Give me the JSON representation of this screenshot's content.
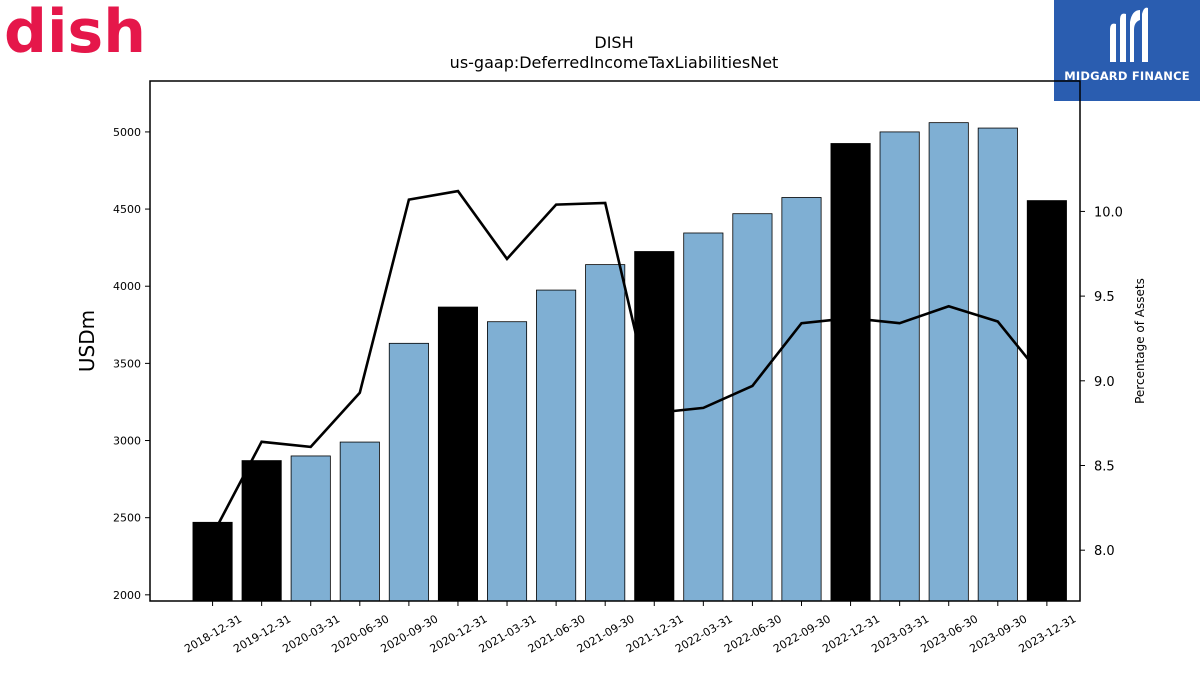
{
  "brand": {
    "left_logo_text": "dish",
    "left_logo_color": "#e5174a",
    "right_logo_text": "MIDGARD FINANCE",
    "right_logo_bg": "#2a5db0"
  },
  "chart_data": {
    "type": "bar",
    "title": "DISH",
    "subtitle": "us-gaap:DeferredIncomeTaxLiabilitiesNet",
    "ylabel": "USDm",
    "y2label": "Percentage of Assets",
    "ylim": [
      1960,
      5330
    ],
    "y2lim": [
      7.7,
      10.77
    ],
    "yticks": [
      2000,
      2500,
      3000,
      3500,
      4000,
      4500,
      5000
    ],
    "y2ticks": [
      8.0,
      8.5,
      9.0,
      9.5,
      10.0
    ],
    "categories": [
      "2018-12-31",
      "2019-12-31",
      "2020-03-31",
      "2020-06-30",
      "2020-09-30",
      "2020-12-31",
      "2021-03-31",
      "2021-06-30",
      "2021-09-30",
      "2021-12-31",
      "2022-03-31",
      "2022-06-30",
      "2022-09-30",
      "2022-12-31",
      "2023-03-31",
      "2023-06-30",
      "2023-09-30",
      "2023-12-31"
    ],
    "series": [
      {
        "kind": "bar",
        "values": [
          2470,
          2870,
          2900,
          2990,
          3630,
          3865,
          3770,
          3975,
          4140,
          4225,
          4345,
          4470,
          4575,
          4925,
          5000,
          5060,
          5025,
          4555
        ],
        "annual": [
          true,
          true,
          false,
          false,
          false,
          true,
          false,
          false,
          false,
          true,
          false,
          false,
          false,
          true,
          false,
          false,
          false,
          true
        ]
      },
      {
        "kind": "line",
        "axis": "right",
        "values": [
          8.09,
          8.64,
          8.61,
          8.93,
          10.07,
          10.12,
          9.72,
          10.04,
          10.05,
          8.81,
          8.84,
          8.97,
          9.34,
          9.37,
          9.34,
          9.44,
          9.35,
          8.99
        ]
      }
    ],
    "colors": {
      "annual_bar": "#000000",
      "quarter_bar": "#7fafd3",
      "line": "#000000"
    },
    "grid": false,
    "legend": "none"
  }
}
